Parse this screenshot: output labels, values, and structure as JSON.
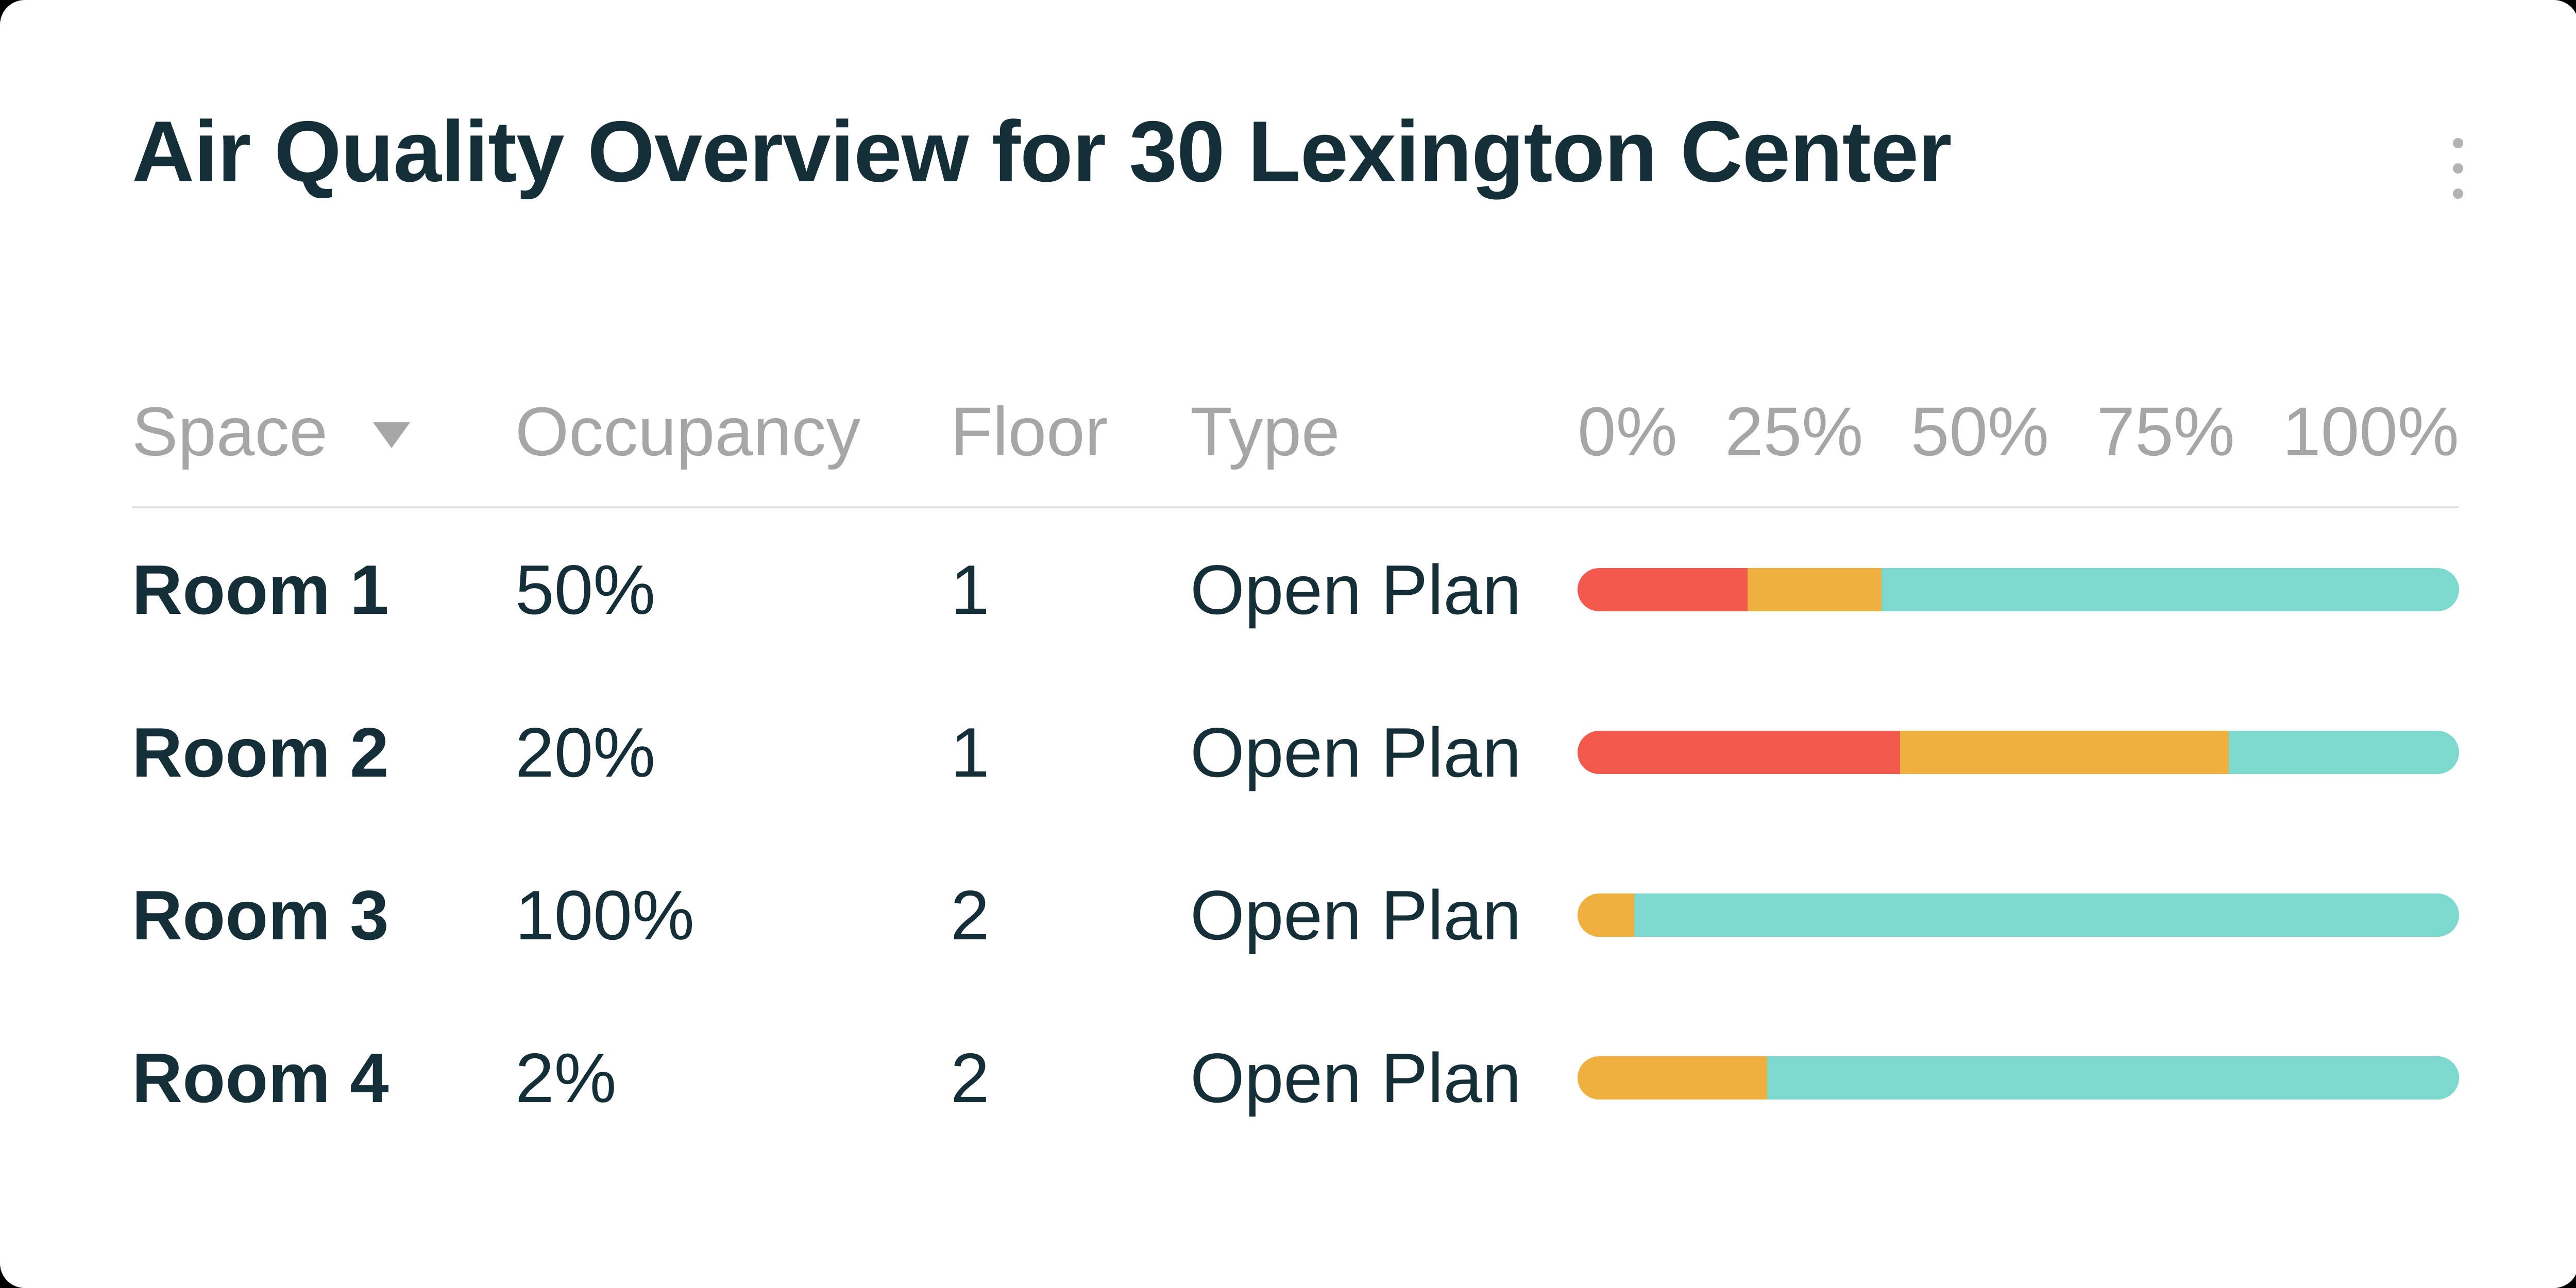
{
  "card": {
    "title": "Air Quality Overview for 30 Lexington Center",
    "menu_icon": "kebab-menu-icon"
  },
  "colors": {
    "red": "#F2594C",
    "amber": "#F0B03E",
    "teal": "#7DD8CE",
    "text_dark": "#142F38",
    "header_gray": "#A6A6A6",
    "divider": "#E6E6E6",
    "dots_gray": "#B3B3B3",
    "card_bg": "#FFFFFF"
  },
  "table": {
    "headers": {
      "space": "Space",
      "occupancy": "Occupancy",
      "floor": "Floor",
      "type": "Type"
    },
    "sort_indicator": "caret-down-icon",
    "axis_labels": [
      "0%",
      "25%",
      "50%",
      "75%",
      "100%"
    ],
    "rows": [
      {
        "space": "Room 1",
        "occupancy": "50%",
        "floor": "1",
        "type": "Open Plan",
        "bar": [
          {
            "color": "red",
            "pct": 19.3
          },
          {
            "color": "amber",
            "pct": 15.2
          },
          {
            "color": "teal",
            "pct": 65.5
          }
        ]
      },
      {
        "space": "Room 2",
        "occupancy": "20%",
        "floor": "1",
        "type": "Open Plan",
        "bar": [
          {
            "color": "red",
            "pct": 36.6
          },
          {
            "color": "amber",
            "pct": 37.3
          },
          {
            "color": "teal",
            "pct": 26.1
          }
        ]
      },
      {
        "space": "Room 3",
        "occupancy": "100%",
        "floor": "2",
        "type": "Open Plan",
        "bar": [
          {
            "color": "amber",
            "pct": 6.4
          },
          {
            "color": "teal",
            "pct": 93.6
          }
        ]
      },
      {
        "space": "Room 4",
        "occupancy": "2%",
        "floor": "2",
        "type": "Open Plan",
        "bar": [
          {
            "color": "amber",
            "pct": 21.5
          },
          {
            "color": "teal",
            "pct": 78.5
          }
        ]
      }
    ]
  },
  "chart_data": {
    "type": "bar",
    "subtype": "horizontal-stacked",
    "title": "Air Quality Overview for 30 Lexington Center",
    "categories": [
      "Room 1",
      "Room 2",
      "Room 3",
      "Room 4"
    ],
    "series": [
      {
        "name": "red-segment",
        "color": "#F2594C",
        "values": [
          19.3,
          36.6,
          0,
          0
        ]
      },
      {
        "name": "amber-segment",
        "color": "#F0B03E",
        "values": [
          15.2,
          37.3,
          6.4,
          21.5
        ]
      },
      {
        "name": "teal-segment",
        "color": "#7DD8CE",
        "values": [
          65.5,
          26.1,
          93.6,
          78.5
        ]
      }
    ],
    "x_tick_labels": [
      "0%",
      "25%",
      "50%",
      "75%",
      "100%"
    ],
    "xlim": [
      0,
      100
    ],
    "legend": "none",
    "grid": "off",
    "table_columns": [
      "Space",
      "Occupancy",
      "Floor",
      "Type"
    ],
    "table_rows": [
      [
        "Room 1",
        "50%",
        "1",
        "Open Plan"
      ],
      [
        "Room 2",
        "20%",
        "1",
        "Open Plan"
      ],
      [
        "Room 3",
        "100%",
        "2",
        "Open Plan"
      ],
      [
        "Room 4",
        "2%",
        "2",
        "Open Plan"
      ]
    ]
  }
}
